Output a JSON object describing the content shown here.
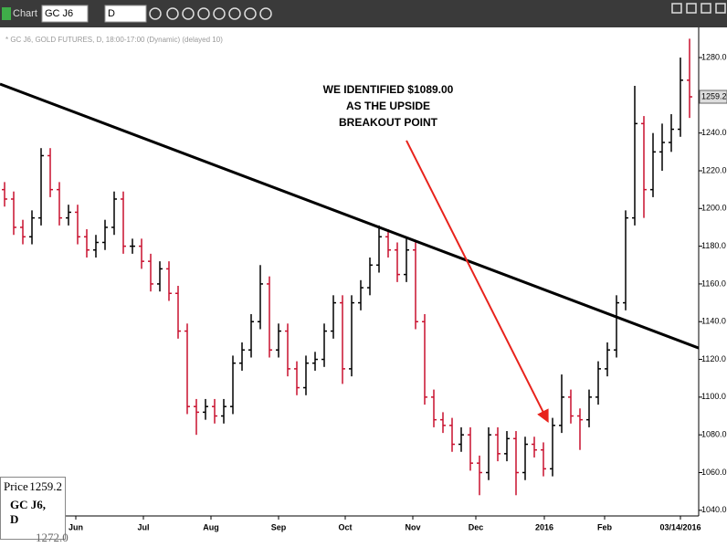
{
  "toolbar": {
    "title": "Chart",
    "symbol": "GC J6",
    "interval": "D"
  },
  "info_box": {
    "price_label": "Price",
    "symbol": "GC J6, D",
    "other": "1272.0"
  },
  "chart_data": {
    "type": "ohlc",
    "subtitle": "* GC J6, GOLD FUTURES, D, 18:00-17:00 (Dynamic) (delayed 10)",
    "annotation": [
      "WE IDENTIFIED $1089.00",
      "AS THE UPSIDE",
      "BREAKOUT POINT"
    ],
    "trendline": {
      "x": [
        -0.5,
        76
      ],
      "y": [
        1266,
        1126
      ],
      "color": "#000000"
    },
    "arrow": {
      "x": [
        44,
        59.5
      ],
      "y": [
        1236,
        1087
      ],
      "color": "#e8231c"
    },
    "up_color": "#000000",
    "down_color": "#c8102e",
    "xlim": [
      -0.5,
      76
    ],
    "ylim": [
      1037,
      1296
    ],
    "xticks": [
      {
        "value": 7.8,
        "label": "Jun"
      },
      {
        "value": 15.2,
        "label": "Jul"
      },
      {
        "value": 22.6,
        "label": "Aug"
      },
      {
        "value": 30,
        "label": "Sep"
      },
      {
        "value": 37.3,
        "label": "Oct"
      },
      {
        "value": 44.7,
        "label": "Nov"
      },
      {
        "value": 51.6,
        "label": "Dec"
      },
      {
        "value": 59.1,
        "label": "2016"
      },
      {
        "value": 65.7,
        "label": "Feb"
      },
      {
        "value": 74,
        "label": "03/14/2016"
      }
    ],
    "yticks": [
      {
        "value": 1040,
        "label": "1040.0"
      },
      {
        "value": 1060,
        "label": "1060.0"
      },
      {
        "value": 1080,
        "label": "1080.0"
      },
      {
        "value": 1100,
        "label": "1100.0"
      },
      {
        "value": 1120,
        "label": "1120.0"
      },
      {
        "value": 1140,
        "label": "1140.0"
      },
      {
        "value": 1160,
        "label": "1160.0"
      },
      {
        "value": 1180,
        "label": "1180.0"
      },
      {
        "value": 1200,
        "label": "1200.0"
      },
      {
        "value": 1220,
        "label": "1220.0"
      },
      {
        "value": 1240,
        "label": "1240.0"
      },
      {
        "value": 1260,
        "label": "1260.0"
      },
      {
        "value": 1280,
        "label": "1280.0"
      }
    ],
    "open": [
      1210,
      1205,
      1190,
      1185,
      1195,
      1228,
      1210,
      1195,
      1198,
      1185,
      1178,
      1182,
      1190,
      1205,
      1180,
      1180,
      1172,
      1160,
      1168,
      1155,
      1135,
      1095,
      1092,
      1095,
      1090,
      1095,
      1118,
      1125,
      1140,
      1160,
      1125,
      1135,
      1115,
      1105,
      1118,
      1120,
      1135,
      1150,
      1115,
      1150,
      1158,
      1170,
      1185,
      1178,
      1165,
      1178,
      1140,
      1100,
      1088,
      1085,
      1075,
      1080,
      1065,
      1060,
      1080,
      1070,
      1078,
      1060,
      1075,
      1072,
      1062,
      1085,
      1100,
      1090,
      1088,
      1100,
      1115,
      1125,
      1150,
      1195,
      1245,
      1210,
      1230,
      1235,
      1242,
      1268
    ],
    "high": [
      1214,
      1209,
      1194,
      1199,
      1232,
      1232,
      1214,
      1202,
      1202,
      1189,
      1186,
      1194,
      1209,
      1209,
      1184,
      1184,
      1176,
      1172,
      1172,
      1159,
      1139,
      1099,
      1099,
      1099,
      1099,
      1122,
      1129,
      1144,
      1170,
      1164,
      1139,
      1139,
      1119,
      1122,
      1124,
      1139,
      1154,
      1154,
      1154,
      1162,
      1174,
      1191,
      1189,
      1182,
      1184,
      1182,
      1144,
      1104,
      1092,
      1089,
      1084,
      1084,
      1069,
      1084,
      1084,
      1082,
      1082,
      1079,
      1079,
      1076,
      1089,
      1112,
      1104,
      1094,
      1104,
      1119,
      1129,
      1154,
      1199,
      1265,
      1249,
      1240,
      1245,
      1250,
      1280,
      1290
    ],
    "low": [
      1201,
      1186,
      1181,
      1181,
      1191,
      1206,
      1191,
      1191,
      1181,
      1174,
      1174,
      1178,
      1186,
      1176,
      1176,
      1168,
      1156,
      1156,
      1151,
      1131,
      1091,
      1080,
      1088,
      1086,
      1086,
      1091,
      1114,
      1121,
      1136,
      1121,
      1121,
      1111,
      1101,
      1101,
      1114,
      1116,
      1131,
      1107,
      1111,
      1146,
      1154,
      1166,
      1174,
      1161,
      1161,
      1136,
      1096,
      1084,
      1081,
      1071,
      1071,
      1061,
      1048,
      1056,
      1066,
      1066,
      1048,
      1056,
      1068,
      1058,
      1058,
      1081,
      1086,
      1072,
      1084,
      1096,
      1111,
      1121,
      1146,
      1191,
      1195,
      1206,
      1220,
      1230,
      1238,
      1248
    ],
    "close": [
      1205,
      1190,
      1185,
      1195,
      1228,
      1210,
      1195,
      1198,
      1185,
      1178,
      1182,
      1190,
      1205,
      1180,
      1180,
      1172,
      1160,
      1168,
      1155,
      1135,
      1095,
      1092,
      1095,
      1090,
      1095,
      1118,
      1125,
      1140,
      1160,
      1125,
      1135,
      1115,
      1105,
      1118,
      1120,
      1135,
      1150,
      1115,
      1150,
      1158,
      1170,
      1185,
      1178,
      1165,
      1178,
      1140,
      1100,
      1088,
      1085,
      1075,
      1080,
      1065,
      1060,
      1080,
      1070,
      1078,
      1060,
      1075,
      1072,
      1062,
      1085,
      1100,
      1090,
      1088,
      1100,
      1115,
      1125,
      1150,
      1195,
      1245,
      1210,
      1230,
      1235,
      1242,
      1268,
      1259.2
    ]
  }
}
